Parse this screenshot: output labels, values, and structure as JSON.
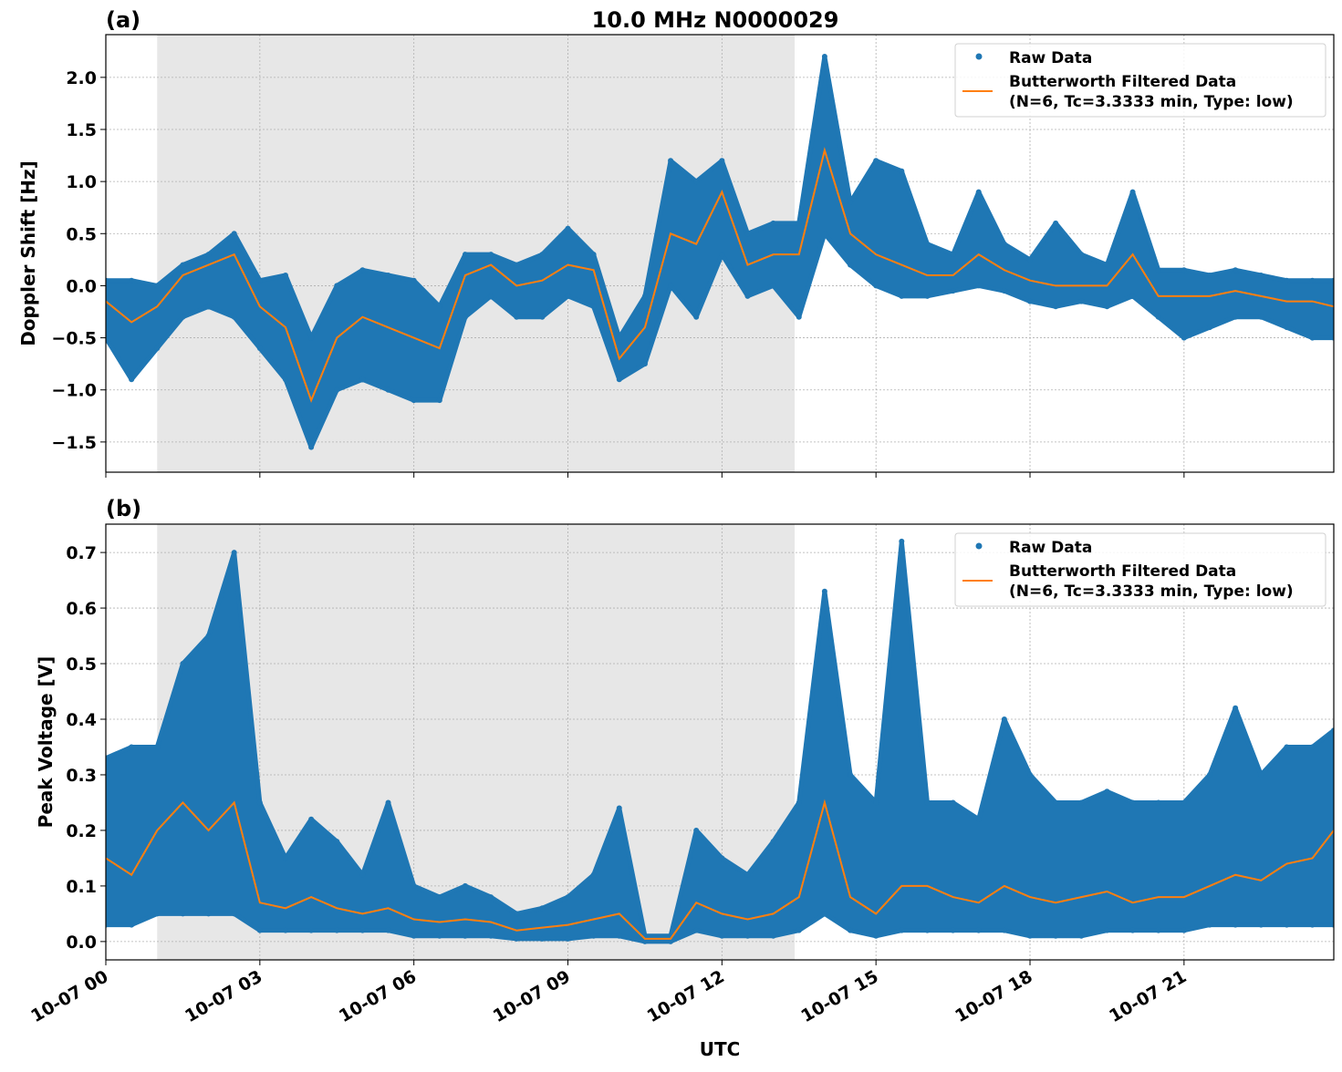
{
  "chart_data": [
    {
      "type": "scatter+line",
      "panel_label": "(a)",
      "title": "10.0 MHz N0000029",
      "ylabel": "Doppler Shift [Hz]",
      "xlabel": "",
      "xlim": [
        "10-07 00:00",
        "10-07 23:55"
      ],
      "ylim": [
        -1.79,
        2.41
      ],
      "yticks": [
        -1.5,
        -1.0,
        -0.5,
        0.0,
        0.5,
        1.0,
        1.5,
        2.0
      ],
      "ytick_labels": [
        "−1.5",
        "−1.0",
        "−0.5",
        "0.0",
        "0.5",
        "1.0",
        "1.5",
        "2.0"
      ],
      "grid": true,
      "shaded_span": [
        "10-07 01:00",
        "10-07 13:25"
      ],
      "legend_position": "top-right",
      "legend": [
        "Raw Data",
        "Butterworth Filtered Data",
        "(N=6, Tc=3.3333 min, Type: low)"
      ],
      "x": [
        "00:00",
        "00:30",
        "01:00",
        "01:30",
        "02:00",
        "02:30",
        "03:00",
        "03:30",
        "04:00",
        "04:30",
        "05:00",
        "05:30",
        "06:00",
        "06:30",
        "07:00",
        "07:30",
        "08:00",
        "08:30",
        "09:00",
        "09:30",
        "10:00",
        "10:30",
        "11:00",
        "11:30",
        "12:00",
        "12:30",
        "13:00",
        "13:30",
        "14:00",
        "14:30",
        "15:00",
        "15:30",
        "16:00",
        "16:30",
        "17:00",
        "17:30",
        "18:00",
        "18:30",
        "19:00",
        "19:30",
        "20:00",
        "20:30",
        "21:00",
        "21:30",
        "22:00",
        "22:30",
        "23:00",
        "23:30",
        "23:55"
      ],
      "filtered": [
        -0.15,
        -0.35,
        -0.2,
        0.1,
        0.2,
        0.3,
        -0.2,
        -0.4,
        -1.1,
        -0.5,
        -0.3,
        -0.4,
        -0.5,
        -0.6,
        0.1,
        0.2,
        0.0,
        0.05,
        0.2,
        0.15,
        -0.7,
        -0.4,
        0.5,
        0.4,
        0.9,
        0.2,
        0.3,
        0.3,
        1.3,
        0.5,
        0.3,
        0.2,
        0.1,
        0.1,
        0.3,
        0.15,
        0.05,
        0.0,
        0.0,
        0.0,
        0.3,
        -0.1,
        -0.1,
        -0.1,
        -0.05,
        -0.1,
        -0.15,
        -0.15,
        -0.2
      ],
      "raw_min": [
        -0.5,
        -0.9,
        -0.6,
        -0.3,
        -0.2,
        -0.3,
        -0.6,
        -0.9,
        -1.55,
        -1.0,
        -0.9,
        -1.0,
        -1.1,
        -1.1,
        -0.3,
        -0.1,
        -0.3,
        -0.3,
        -0.1,
        -0.2,
        -0.9,
        -0.75,
        0.0,
        -0.3,
        0.3,
        -0.1,
        0.0,
        -0.3,
        0.5,
        0.2,
        0.0,
        -0.1,
        -0.1,
        -0.05,
        0.0,
        -0.05,
        -0.15,
        -0.2,
        -0.15,
        -0.2,
        -0.1,
        -0.3,
        -0.5,
        -0.4,
        -0.3,
        -0.3,
        -0.4,
        -0.5,
        -0.5
      ],
      "raw_max": [
        0.05,
        0.05,
        0.0,
        0.2,
        0.3,
        0.5,
        0.05,
        0.1,
        -0.5,
        0.0,
        0.15,
        0.1,
        0.05,
        -0.2,
        0.3,
        0.3,
        0.2,
        0.3,
        0.55,
        0.3,
        -0.5,
        -0.1,
        1.2,
        1.0,
        1.2,
        0.5,
        0.6,
        0.6,
        2.2,
        0.8,
        1.2,
        1.1,
        0.4,
        0.3,
        0.9,
        0.4,
        0.25,
        0.6,
        0.3,
        0.2,
        0.9,
        0.15,
        0.15,
        0.1,
        0.15,
        0.1,
        0.05,
        0.05,
        0.05
      ],
      "colors": {
        "raw": "#1f77b4",
        "filtered": "#ff7f0e",
        "shade": "#e7e7e7"
      }
    },
    {
      "type": "scatter+line",
      "panel_label": "(b)",
      "ylabel": "Peak Voltage [V]",
      "xlabel": "UTC",
      "xlim": [
        "10-07 00:00",
        "10-07 23:55"
      ],
      "ylim": [
        -0.033,
        0.751
      ],
      "yticks": [
        0.0,
        0.1,
        0.2,
        0.3,
        0.4,
        0.5,
        0.6,
        0.7
      ],
      "ytick_labels": [
        "0.0",
        "0.1",
        "0.2",
        "0.3",
        "0.4",
        "0.5",
        "0.6",
        "0.7"
      ],
      "xtick_labels": [
        "10-07 00",
        "10-07 03",
        "10-07 06",
        "10-07 09",
        "10-07 12",
        "10-07 15",
        "10-07 18",
        "10-07 21"
      ],
      "xticks": [
        "00:00",
        "03:00",
        "06:00",
        "09:00",
        "12:00",
        "15:00",
        "18:00",
        "21:00"
      ],
      "grid": true,
      "shaded_span": [
        "10-07 01:00",
        "10-07 13:25"
      ],
      "legend_position": "top-right",
      "legend": [
        "Raw Data",
        "Butterworth Filtered Data",
        "(N=6, Tc=3.3333 min, Type: low)"
      ],
      "x": [
        "00:00",
        "00:30",
        "01:00",
        "01:30",
        "02:00",
        "02:30",
        "03:00",
        "03:30",
        "04:00",
        "04:30",
        "05:00",
        "05:30",
        "06:00",
        "06:30",
        "07:00",
        "07:30",
        "08:00",
        "08:30",
        "09:00",
        "09:30",
        "10:00",
        "10:30",
        "11:00",
        "11:30",
        "12:00",
        "12:30",
        "13:00",
        "13:30",
        "14:00",
        "14:30",
        "15:00",
        "15:30",
        "16:00",
        "16:30",
        "17:00",
        "17:30",
        "18:00",
        "18:30",
        "19:00",
        "19:30",
        "20:00",
        "20:30",
        "21:00",
        "21:30",
        "22:00",
        "22:30",
        "23:00",
        "23:30",
        "23:55"
      ],
      "filtered": [
        0.15,
        0.12,
        0.2,
        0.25,
        0.2,
        0.25,
        0.07,
        0.06,
        0.08,
        0.06,
        0.05,
        0.06,
        0.04,
        0.035,
        0.04,
        0.035,
        0.02,
        0.025,
        0.03,
        0.04,
        0.05,
        0.005,
        0.005,
        0.07,
        0.05,
        0.04,
        0.05,
        0.08,
        0.25,
        0.08,
        0.05,
        0.1,
        0.1,
        0.08,
        0.07,
        0.1,
        0.08,
        0.07,
        0.08,
        0.09,
        0.07,
        0.08,
        0.08,
        0.1,
        0.12,
        0.11,
        0.14,
        0.15,
        0.2
      ],
      "raw_min": [
        0.03,
        0.03,
        0.05,
        0.05,
        0.05,
        0.05,
        0.02,
        0.02,
        0.02,
        0.02,
        0.02,
        0.02,
        0.01,
        0.01,
        0.01,
        0.01,
        0.005,
        0.005,
        0.005,
        0.01,
        0.01,
        0.0,
        0.0,
        0.02,
        0.01,
        0.01,
        0.01,
        0.02,
        0.05,
        0.02,
        0.01,
        0.02,
        0.02,
        0.02,
        0.02,
        0.02,
        0.01,
        0.01,
        0.01,
        0.02,
        0.02,
        0.02,
        0.02,
        0.03,
        0.03,
        0.03,
        0.03,
        0.03,
        0.03
      ],
      "raw_max": [
        0.33,
        0.35,
        0.35,
        0.5,
        0.55,
        0.7,
        0.25,
        0.15,
        0.22,
        0.18,
        0.12,
        0.25,
        0.1,
        0.08,
        0.1,
        0.08,
        0.05,
        0.06,
        0.08,
        0.12,
        0.24,
        0.01,
        0.01,
        0.2,
        0.15,
        0.12,
        0.18,
        0.25,
        0.63,
        0.3,
        0.25,
        0.72,
        0.25,
        0.25,
        0.22,
        0.4,
        0.3,
        0.25,
        0.25,
        0.27,
        0.25,
        0.25,
        0.25,
        0.3,
        0.42,
        0.3,
        0.35,
        0.35,
        0.38
      ],
      "colors": {
        "raw": "#1f77b4",
        "filtered": "#ff7f0e",
        "shade": "#e7e7e7"
      }
    }
  ]
}
